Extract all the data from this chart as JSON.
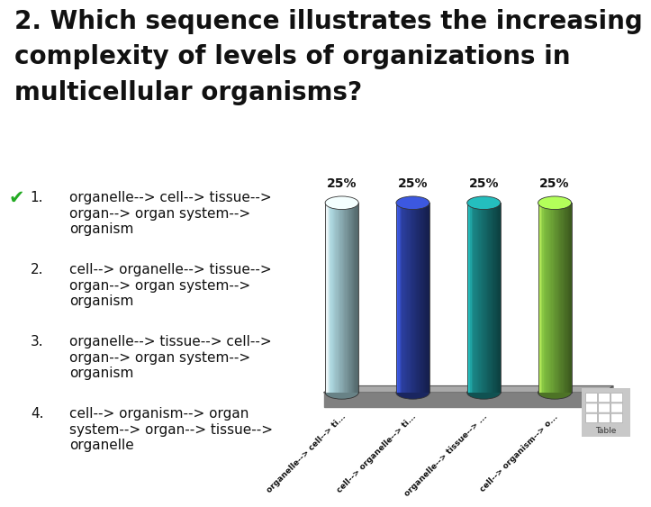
{
  "title_line1": "2. Which sequence illustrates the increasing",
  "title_line2": "complexity of levels of organizations in",
  "title_line3": "multicellular organisms?",
  "title_fontsize": 20,
  "background_color": "#ffffff",
  "options": [
    {
      "number": "1.",
      "text": "organelle--> cell--> tissue-->\norgan--> organ system-->\norganism",
      "correct": true
    },
    {
      "number": "2.",
      "text": "cell--> organelle--> tissue-->\norgan--> organ system-->\norganism",
      "correct": false
    },
    {
      "number": "3.",
      "text": "organelle--> tissue--> cell-->\norgan--> organ system-->\norganism",
      "correct": false
    },
    {
      "number": "4.",
      "text": "cell--> organism--> organ\nsystem--> organ--> tissue-->\norganelle",
      "correct": false
    }
  ],
  "checkmark_color": "#22aa22",
  "bar_labels": [
    "organelle--> cell--> ti...",
    "cell--> organelle--> ti...",
    "organelle--> tissue--> ...",
    "cell--> organism--> o..."
  ],
  "bar_values": [
    25,
    25,
    25,
    25
  ],
  "bar_colors": [
    "#aed8e0",
    "#2b3fa0",
    "#1a8888",
    "#80c040"
  ],
  "bar_label_texts": [
    "25%",
    "25%",
    "25%",
    "25%"
  ],
  "ylim": [
    0,
    35
  ],
  "option_fontsize": 11,
  "number_fontsize": 11
}
